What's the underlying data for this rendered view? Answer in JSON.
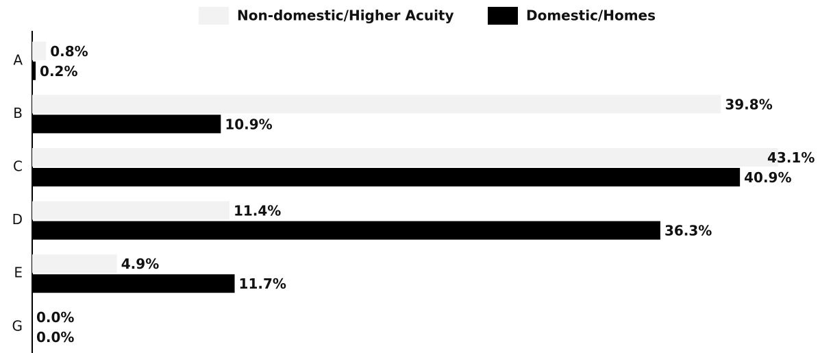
{
  "chart_data": {
    "type": "hbar",
    "categories": [
      "A",
      "B",
      "C",
      "D",
      "E",
      "G"
    ],
    "series": [
      {
        "name": "Non-domestic/Higher Acuity",
        "color": "#f2f2f2",
        "values": [
          0.8,
          39.8,
          43.1,
          11.4,
          4.9,
          0.0
        ],
        "value_labels": [
          "0.8%",
          "39.8%",
          "43.1%",
          "11.4%",
          "4.9%",
          "0.0%"
        ]
      },
      {
        "name": "Domestic/Homes",
        "color": "#000000",
        "values": [
          0.2,
          10.9,
          40.9,
          36.3,
          11.7,
          0.0
        ],
        "value_labels": [
          "0.2%",
          "10.9%",
          "40.9%",
          "36.3%",
          "11.7%",
          "0.0%"
        ]
      }
    ],
    "legend": "top"
  }
}
